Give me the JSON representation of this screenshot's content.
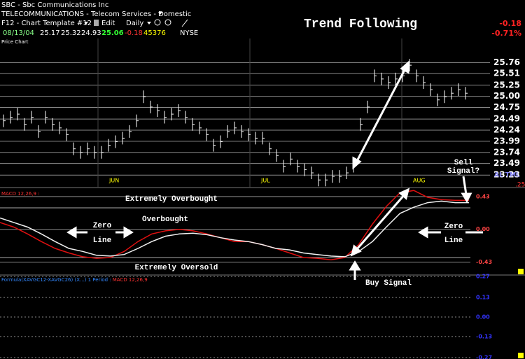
{
  "header": {
    "symbol_line": "SBC - Sbc Communications Inc",
    "industry": "TELECOMMUNICATIONS - Telecom Services - Domestic",
    "template": "F12 - Chart Template #12",
    "edit": "Edit",
    "period": "Daily",
    "quote": {
      "date": "08/13/04",
      "open": "25.17",
      "high": "25.32",
      "low": "24.93",
      "last": "25.06",
      "change": "-0.18",
      "volume": "45376",
      "exchange": "NYSE"
    },
    "change_right": "-0.18",
    "change_pct": "-0.71%",
    "title": "Trend Following",
    "panel_label": "Price Chart"
  },
  "price_chart": {
    "ylim": [
      22.95,
      26.3
    ],
    "yticks": [
      25.76,
      25.51,
      25.25,
      {
        "value": 25,
        "label": "25.00"
      },
      24.75,
      24.49,
      24.24,
      23.99,
      23.74,
      23.49,
      23.23
    ],
    "months": [
      "JUN",
      "JUL",
      "AUG"
    ],
    "closes": [
      24.45,
      24.53,
      24.6,
      24.37,
      24.53,
      24.21,
      24.53,
      24.37,
      24.29,
      24.14,
      23.82,
      23.74,
      23.82,
      23.74,
      23.74,
      23.9,
      23.98,
      24.06,
      24.21,
      24.45,
      24.99,
      24.76,
      24.68,
      24.53,
      24.6,
      24.68,
      24.53,
      24.37,
      24.29,
      24.14,
      23.9,
      23.98,
      24.21,
      24.29,
      24.21,
      24.14,
      24.06,
      24.06,
      23.82,
      23.67,
      23.43,
      23.59,
      23.43,
      23.35,
      23.28,
      23.12,
      23.12,
      23.2,
      23.2,
      23.28,
      23.43,
      24.37,
      24.76,
      25.46,
      25.39,
      25.31,
      25.39,
      25.46,
      25.7,
      25.46,
      25.31,
      25.15,
      24.92,
      24.99,
      25.07,
      25.15,
      25.07
    ],
    "side_label": "AL TML",
    "side_value": ".25"
  },
  "macd_chart": {
    "label": "MACD 12,26,9 :",
    "ylim": [
      -0.59,
      0.53
    ],
    "yticks": [
      0.43,
      {
        "value": 0,
        "label": "0.00"
      },
      -0.43
    ],
    "series": [
      {
        "name": "MACD",
        "color": "#e01010",
        "values": [
          0.09,
          0.03,
          -0.06,
          -0.16,
          -0.25,
          -0.31,
          -0.36,
          -0.38,
          -0.37,
          -0.29,
          -0.16,
          -0.06,
          -0.02,
          0,
          -0.02,
          -0.06,
          -0.11,
          -0.16,
          -0.16,
          -0.2,
          -0.25,
          -0.31,
          -0.37,
          -0.38,
          -0.4,
          -0.37,
          -0.2,
          0.07,
          0.3,
          0.48,
          0.51,
          0.42,
          0.39,
          0.38,
          0.38
        ]
      },
      {
        "name": "Signal",
        "color": "#f0f0f0",
        "values": [
          0.15,
          0.09,
          0.03,
          -0.06,
          -0.16,
          -0.25,
          -0.29,
          -0.34,
          -0.35,
          -0.33,
          -0.25,
          -0.16,
          -0.09,
          -0.06,
          -0.05,
          -0.07,
          -0.11,
          -0.14,
          -0.16,
          -0.2,
          -0.25,
          -0.27,
          -0.31,
          -0.33,
          -0.35,
          -0.36,
          -0.29,
          -0.16,
          0.03,
          0.21,
          0.29,
          0.35,
          0.37,
          0.35,
          0.35
        ]
      }
    ]
  },
  "formula_panel": {
    "formula": "Formula(XAVGC12-XAVGC26) (X...) 1 Period :",
    "label": "MACD 12,26,9",
    "ylim": [
      -0.28,
      0.28
    ],
    "yticks": [
      0.27,
      0.13,
      {
        "value": 0,
        "label": "0.00"
      },
      -0.13,
      -0.27
    ]
  },
  "annotations": {
    "extremely_overbought": "Extremely Overbought",
    "overbought": "Overbought",
    "zero_left": "Zero",
    "line_left": "Line",
    "extremely_oversold": "Extremely Oversold",
    "zero_right": "Zero",
    "line_right": "Line",
    "buy_signal": "Buy Signal",
    "sell": "Sell",
    "signal": "Signal?"
  }
}
